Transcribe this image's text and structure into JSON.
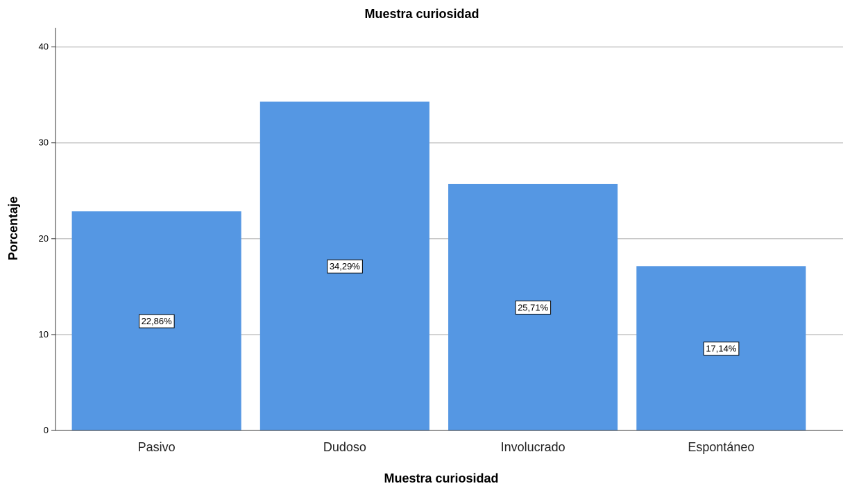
{
  "chart_data": {
    "type": "bar",
    "title": "Muestra curiosidad",
    "xlabel": "Muestra curiosidad",
    "ylabel": "Porcentaje",
    "categories": [
      "Pasivo",
      "Dudoso",
      "Involucrado",
      "Espontáneo"
    ],
    "values": [
      22.86,
      34.29,
      25.71,
      17.14
    ],
    "data_labels": [
      "22,86%",
      "34,29%",
      "25,71%",
      "17,14%"
    ],
    "yticks": [
      "0",
      "10",
      "20",
      "30",
      "40"
    ],
    "ylim": [
      0,
      42
    ],
    "grid": true,
    "bar_color": "#5597e3",
    "gridline_color": "#c8c8c8",
    "axis_color": "#333333"
  }
}
